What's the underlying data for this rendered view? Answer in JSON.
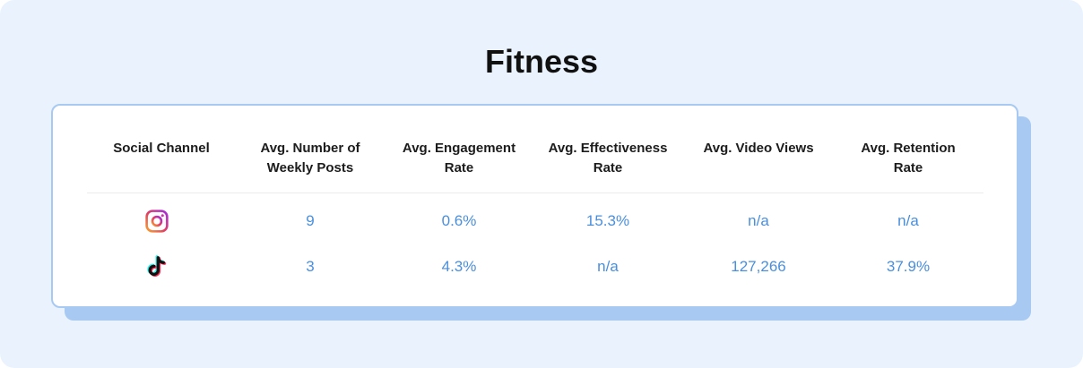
{
  "title": "Fitness",
  "table": {
    "columns": [
      "Social Channel",
      "Avg. Number of\nWeekly Posts",
      "Avg. Engagement\nRate",
      "Avg. Effectiveness\nRate",
      "Avg. Video Views",
      "Avg. Retention Rate"
    ],
    "rows": [
      {
        "channel_icon": "instagram-icon",
        "values": [
          "9",
          "0.6%",
          "15.3%",
          "n/a",
          "n/a"
        ]
      },
      {
        "channel_icon": "tiktok-icon",
        "values": [
          "3",
          "4.3%",
          "n/a",
          "127,266",
          "37.9%"
        ]
      }
    ]
  },
  "colors": {
    "background": "#eaf3fd",
    "card_border": "#a8c9f2",
    "card_shadow": "#a8c9f2",
    "value_text": "#4a8fdc",
    "header_text": "#1c1c1c"
  }
}
